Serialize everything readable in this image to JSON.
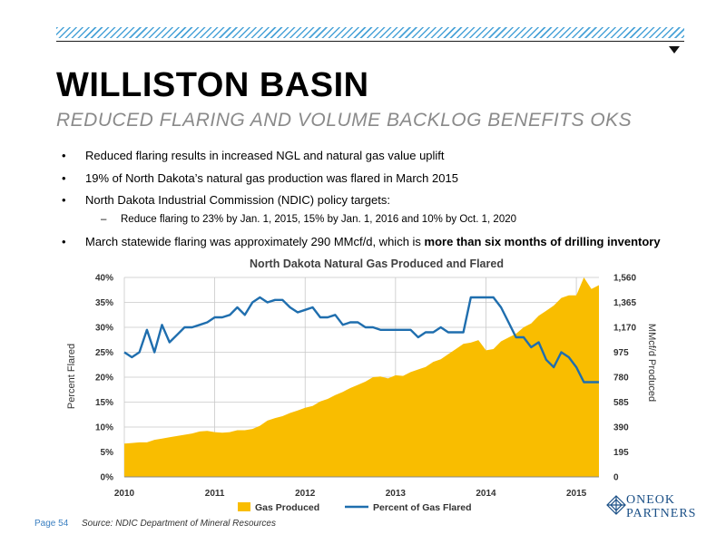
{
  "header": {
    "title": "WILLISTON BASIN",
    "subtitle": "REDUCED FLARING AND VOLUME BACKLOG BENEFITS OKS"
  },
  "bullets": [
    {
      "text": "Reduced flaring results in increased NGL and natural gas value uplift"
    },
    {
      "text": "19% of North Dakota’s natural gas production was flared in March 2015"
    },
    {
      "text": "North Dakota Industrial Commission (NDIC) policy targets:"
    },
    {
      "text": "March statewide flaring was approximately 290 MMcf/d, which is ",
      "bold": "more than six months of drilling inventory"
    }
  ],
  "sub_bullet": "Reduce flaring to 23% by Jan. 1, 2015, 15% by Jan. 1, 2016 and 10% by Oct. 1, 2020",
  "bullet_symbol": "•",
  "dash_symbol": "–",
  "footer": {
    "page": "Page 54",
    "source": "Source: NDIC Department of Mineral Resources",
    "logo_line1": "ONEOK",
    "logo_line2": "PARTNERS"
  },
  "colors": {
    "area": "#f9bd00",
    "line": "#1f6eae",
    "accent": "#4aa3d8",
    "logo": "#1a4f86"
  },
  "chart_data": {
    "type": "area",
    "title": "North Dakota Natural Gas Produced and Flared",
    "ylabel_left": "Percent Flared",
    "ylabel_right": "MMcf/d Produced",
    "x_tick_labels": [
      "2010",
      "2011",
      "2012",
      "2013",
      "2014",
      "2015"
    ],
    "x_tick_values": [
      2010,
      2011,
      2012,
      2013,
      2014,
      2015
    ],
    "xlim": [
      2010,
      2015.25
    ],
    "y_left_ticks": [
      "0%",
      "5%",
      "10%",
      "15%",
      "20%",
      "25%",
      "30%",
      "35%",
      "40%"
    ],
    "y_left_lim": [
      0,
      40
    ],
    "y_right_ticks": [
      "0",
      "195",
      "390",
      "585",
      "780",
      "975",
      "1,170",
      "1,365",
      "1,560"
    ],
    "y_right_lim": [
      0,
      1560
    ],
    "grid": true,
    "legend_position": "bottom",
    "series": [
      {
        "name": "Gas Produced",
        "axis": "right",
        "type": "area",
        "x": [
          2010.0,
          2010.083,
          2010.167,
          2010.25,
          2010.333,
          2010.417,
          2010.5,
          2010.583,
          2010.667,
          2010.75,
          2010.833,
          2010.917,
          2011.0,
          2011.083,
          2011.167,
          2011.25,
          2011.333,
          2011.417,
          2011.5,
          2011.583,
          2011.667,
          2011.75,
          2011.833,
          2011.917,
          2012.0,
          2012.083,
          2012.167,
          2012.25,
          2012.333,
          2012.417,
          2012.5,
          2012.583,
          2012.667,
          2012.75,
          2012.833,
          2012.917,
          2013.0,
          2013.083,
          2013.167,
          2013.25,
          2013.333,
          2013.417,
          2013.5,
          2013.583,
          2013.667,
          2013.75,
          2013.833,
          2013.917,
          2014.0,
          2014.083,
          2014.167,
          2014.25,
          2014.333,
          2014.417,
          2014.5,
          2014.583,
          2014.667,
          2014.75,
          2014.833,
          2014.917,
          2015.0,
          2015.083,
          2015.167,
          2015.25
        ],
        "values": [
          260,
          265,
          270,
          270,
          290,
          300,
          310,
          320,
          330,
          340,
          355,
          360,
          350,
          345,
          350,
          365,
          365,
          375,
          400,
          440,
          460,
          475,
          500,
          520,
          540,
          555,
          590,
          610,
          640,
          665,
          695,
          720,
          745,
          780,
          785,
          770,
          795,
          790,
          820,
          840,
          860,
          900,
          920,
          960,
          1000,
          1040,
          1050,
          1070,
          990,
          1000,
          1060,
          1090,
          1120,
          1170,
          1200,
          1260,
          1300,
          1340,
          1400,
          1420,
          1420,
          1560,
          1470,
          1500
        ]
      },
      {
        "name": "Percent of Gas Flared",
        "axis": "left",
        "type": "line",
        "x": [
          2010.0,
          2010.083,
          2010.167,
          2010.25,
          2010.333,
          2010.417,
          2010.5,
          2010.583,
          2010.667,
          2010.75,
          2010.833,
          2010.917,
          2011.0,
          2011.083,
          2011.167,
          2011.25,
          2011.333,
          2011.417,
          2011.5,
          2011.583,
          2011.667,
          2011.75,
          2011.833,
          2011.917,
          2012.0,
          2012.083,
          2012.167,
          2012.25,
          2012.333,
          2012.417,
          2012.5,
          2012.583,
          2012.667,
          2012.75,
          2012.833,
          2012.917,
          2013.0,
          2013.083,
          2013.167,
          2013.25,
          2013.333,
          2013.417,
          2013.5,
          2013.583,
          2013.667,
          2013.75,
          2013.833,
          2013.917,
          2014.0,
          2014.083,
          2014.167,
          2014.25,
          2014.333,
          2014.417,
          2014.5,
          2014.583,
          2014.667,
          2014.75,
          2014.833,
          2014.917,
          2015.0,
          2015.083,
          2015.167,
          2015.25
        ],
        "values": [
          25,
          24,
          25,
          29.5,
          25,
          30.5,
          27,
          28.5,
          30,
          30,
          30.5,
          31,
          32,
          32,
          32.5,
          34,
          32.5,
          35,
          36,
          35,
          35.5,
          35.5,
          34,
          33,
          33.5,
          34,
          32,
          32,
          32.5,
          30.5,
          31,
          31,
          30,
          30,
          29.5,
          29.5,
          29.5,
          29.5,
          29.5,
          28,
          29,
          29,
          30,
          29,
          29,
          29,
          36,
          36,
          36,
          36,
          34,
          31,
          28,
          28,
          26,
          27,
          23.5,
          22,
          25,
          24,
          22,
          19,
          19,
          19
        ]
      }
    ]
  }
}
